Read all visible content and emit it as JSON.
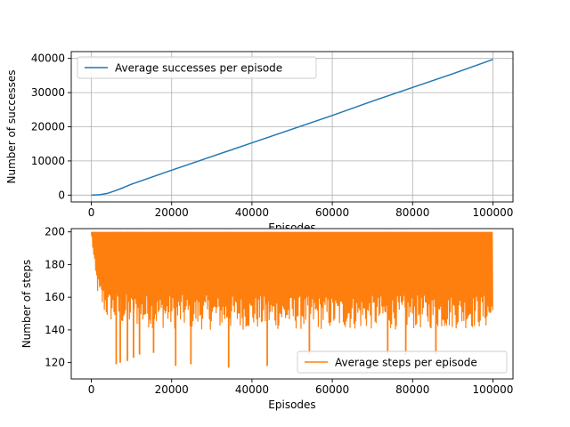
{
  "chart_data": [
    {
      "type": "line",
      "xlabel": "Episodes",
      "ylabel": "Number of successes",
      "xlim": [
        -5000,
        105000
      ],
      "ylim": [
        -2000,
        42000
      ],
      "x_ticks": [
        0,
        20000,
        40000,
        60000,
        80000,
        100000
      ],
      "y_ticks": [
        0,
        10000,
        20000,
        30000,
        40000
      ],
      "grid": true,
      "legend_position": "upper-left",
      "series": [
        {
          "name": "Average successes per episode",
          "color": "#1f77b4",
          "x": [
            0,
            2000,
            4000,
            6000,
            8000,
            10000,
            20000,
            30000,
            40000,
            50000,
            60000,
            70000,
            80000,
            90000,
            100000
          ],
          "values": [
            0,
            100,
            500,
            1300,
            2200,
            3200,
            7300,
            11300,
            15300,
            19300,
            23300,
            27500,
            31500,
            35500,
            39700
          ]
        }
      ]
    },
    {
      "type": "line",
      "xlabel": "Episodes",
      "ylabel": "Number of steps",
      "xlim": [
        -5000,
        105000
      ],
      "ylim": [
        110,
        202
      ],
      "x_ticks": [
        0,
        20000,
        40000,
        60000,
        80000,
        100000
      ],
      "y_ticks": [
        120,
        140,
        160,
        180,
        200
      ],
      "grid": false,
      "legend_position": "lower-right",
      "series": [
        {
          "name": "Average steps per episode",
          "color": "#ff7f0e",
          "x_range": [
            0,
            100000
          ],
          "envelope_x": [
            0,
            1000,
            2000,
            4000,
            8000,
            15000,
            30000,
            50000,
            70000,
            100000
          ],
          "envelope_min": [
            200,
            170,
            155,
            145,
            142,
            141,
            140,
            140,
            140,
            141
          ],
          "envelope_max": [
            200,
            200,
            200,
            200,
            200,
            200,
            200,
            200,
            200,
            200
          ],
          "dips": [
            [
              6200,
              119
            ],
            [
              7200,
              120
            ],
            [
              9000,
              121
            ],
            [
              10500,
              123
            ],
            [
              12000,
              125
            ],
            [
              15500,
              126
            ],
            [
              21000,
              118
            ],
            [
              24800,
              119
            ],
            [
              34200,
              117
            ],
            [
              43800,
              118
            ],
            [
              54300,
              125
            ],
            [
              73800,
              125
            ],
            [
              78300,
              125
            ],
            [
              85800,
              125
            ]
          ]
        }
      ]
    }
  ]
}
